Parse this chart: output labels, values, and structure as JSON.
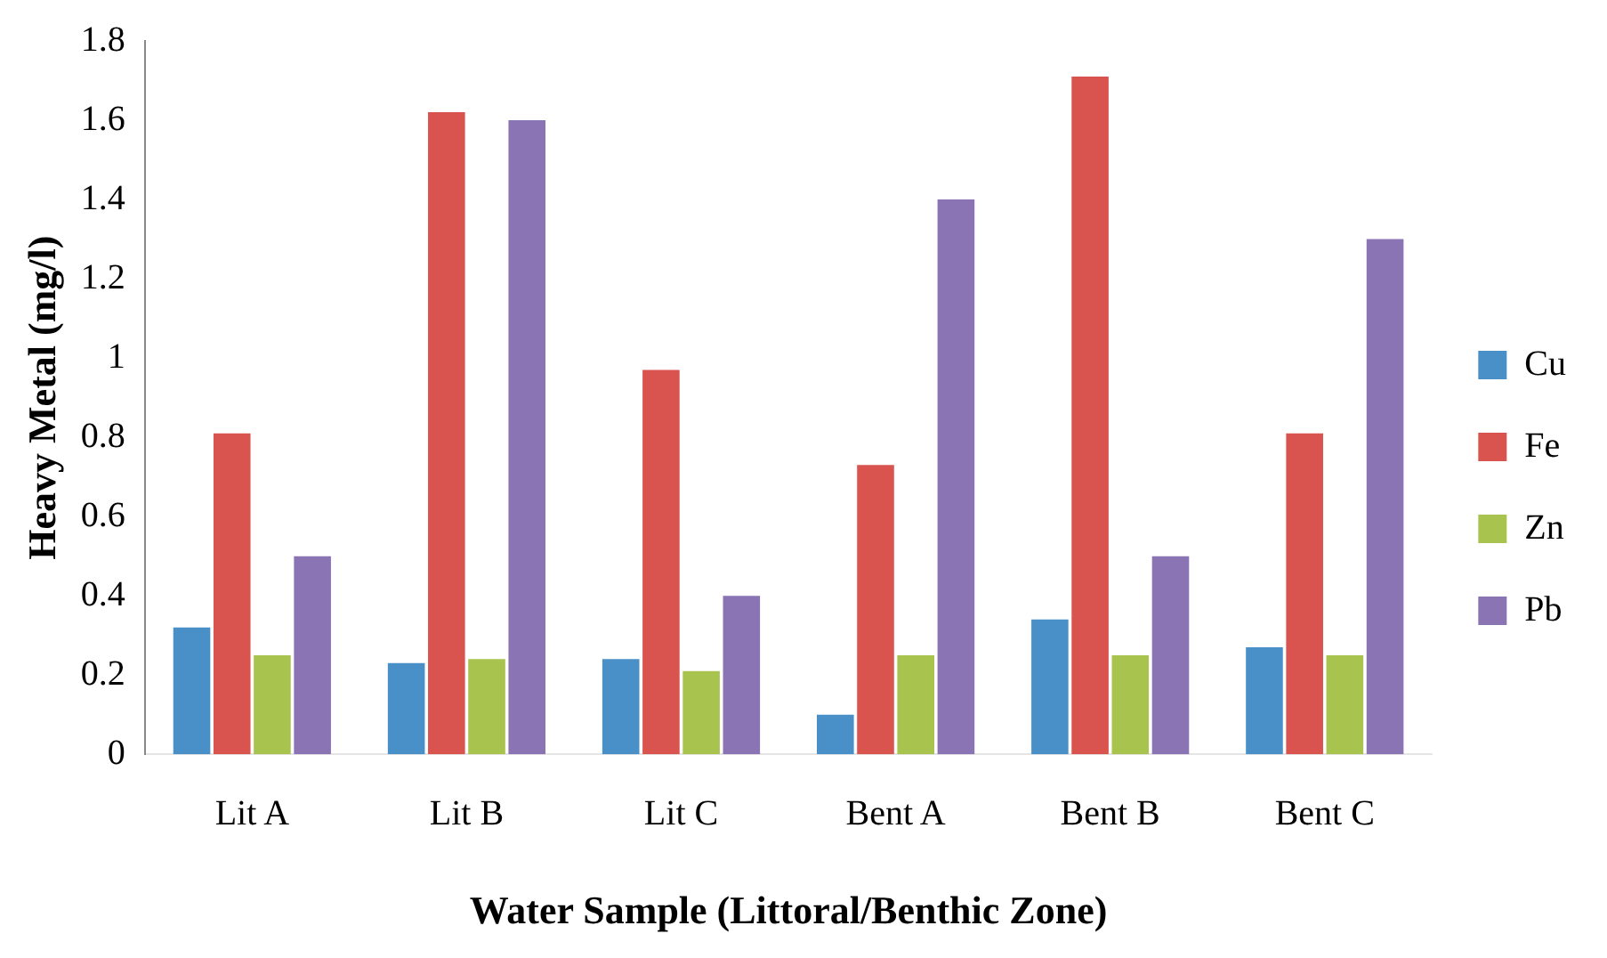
{
  "chart_data": {
    "type": "bar",
    "xlabel": "Water Sample (Littoral/Benthic Zone)",
    "ylabel": "Heavy Metal (mg/l)",
    "categories": [
      "Lit A",
      "Lit B",
      "Lit C",
      "Bent A",
      "Bent B",
      "Bent C"
    ],
    "series": [
      {
        "name": "Cu",
        "color": "#4a90c8",
        "values": [
          0.32,
          0.23,
          0.24,
          0.1,
          0.34,
          0.27
        ]
      },
      {
        "name": "Fe",
        "color": "#d9534f",
        "values": [
          0.81,
          1.62,
          0.97,
          0.73,
          1.71,
          0.81
        ]
      },
      {
        "name": "Zn",
        "color": "#a9c34f",
        "values": [
          0.25,
          0.24,
          0.21,
          0.25,
          0.25,
          0.25
        ]
      },
      {
        "name": "Pb",
        "color": "#8b74b3",
        "values": [
          0.5,
          1.6,
          0.4,
          1.4,
          0.5,
          1.3
        ]
      }
    ],
    "ylim": [
      0,
      1.8
    ],
    "yticks": [
      0,
      0.2,
      0.4,
      0.6,
      0.8,
      1,
      1.2,
      1.4,
      1.6,
      1.8
    ],
    "grid": false,
    "legend": "right"
  }
}
